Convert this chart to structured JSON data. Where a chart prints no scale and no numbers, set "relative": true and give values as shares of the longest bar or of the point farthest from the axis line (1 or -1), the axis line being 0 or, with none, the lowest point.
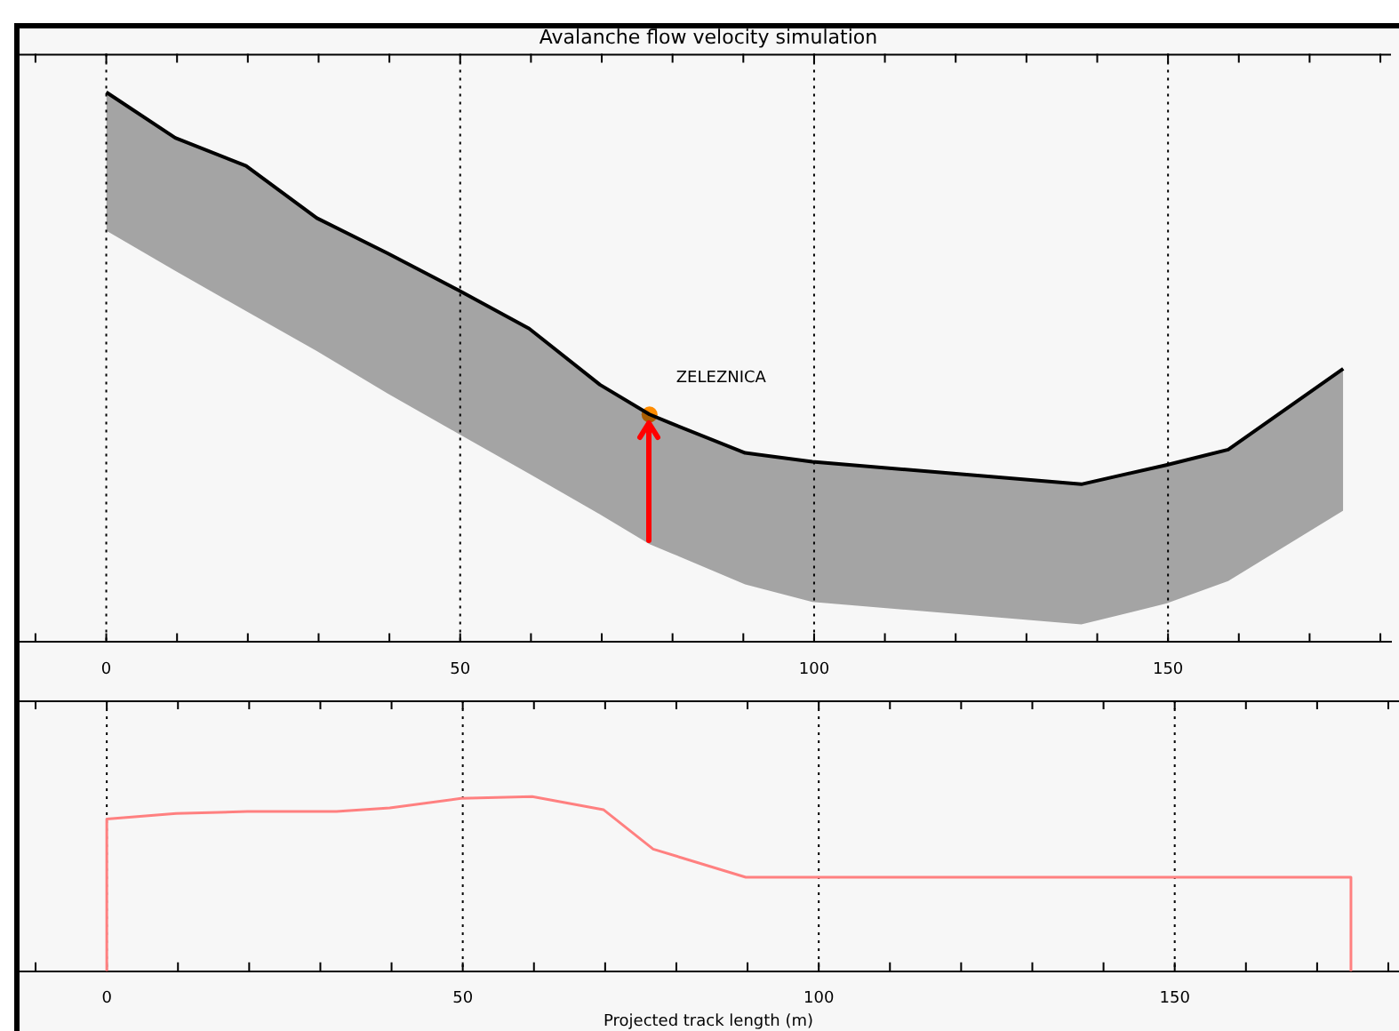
{
  "chart_data": [
    {
      "type": "line",
      "title": "Avalanche flow velocity simulation",
      "relative": true,
      "grid": "x",
      "xlim": [
        -12.5,
        181.5
      ],
      "xticks": [
        {
          "value": -10,
          "label": null
        },
        0,
        {
          "value": 10,
          "label": null
        },
        {
          "value": 20,
          "label": null
        },
        {
          "value": 30,
          "label": null
        },
        {
          "value": 40,
          "label": null
        },
        50,
        {
          "value": 60,
          "label": null
        },
        {
          "value": 70,
          "label": null
        },
        {
          "value": 80,
          "label": null
        },
        {
          "value": 90,
          "label": null
        },
        100,
        {
          "value": 110,
          "label": null
        },
        {
          "value": 120,
          "label": null
        },
        {
          "value": 130,
          "label": null
        },
        {
          "value": 140,
          "label": null
        },
        150,
        {
          "value": 160,
          "label": null
        },
        {
          "value": 170,
          "label": null
        },
        {
          "value": 180,
          "label": null
        }
      ],
      "series": [
        {
          "color": "#000000",
          "x": [
            0,
            9.75,
            19.75,
            29.75,
            39.75,
            49.75,
            59.75,
            69.75,
            76.75,
            79.75,
            90.25,
            99.75,
            137.75,
            149.75,
            158.5,
            174.75
          ],
          "values": [
            1,
            0.917,
            0.866,
            0.771,
            0.707,
            0.64,
            0.57,
            0.468,
            0.414,
            0.398,
            0.344,
            0.328,
            0.287,
            0.322,
            0.35,
            0.497
          ],
          "lower": [
            0.748,
            0.675,
            0.602,
            0.529,
            0.452,
            0.379,
            0.306,
            0.232,
            0.178,
            0.162,
            0.105,
            0.073,
            0.032,
            0.07,
            0.111,
            0.239
          ],
          "upper": [
            1,
            0.917,
            0.866,
            0.771,
            0.707,
            0.64,
            0.57,
            0.468,
            0.414,
            0.398,
            0.344,
            0.328,
            0.287,
            0.322,
            0.35,
            0.497
          ]
        },
        {
          "type": "scatter",
          "color": "#ff8c00",
          "x": [
            76.75
          ],
          "values": [
            0.414
          ]
        }
      ],
      "annotations": [
        {
          "text": "ZELEZNICA",
          "x": 76.75,
          "y": 0.414
        }
      ]
    },
    {
      "type": "line",
      "xlabel": "Projected track length (m)",
      "relative": true,
      "grid": "x",
      "xlim": [
        -12.5,
        181.5
      ],
      "xticks": [
        {
          "value": -10,
          "label": null
        },
        0,
        {
          "value": 10,
          "label": null
        },
        {
          "value": 20,
          "label": null
        },
        {
          "value": 30,
          "label": null
        },
        {
          "value": 40,
          "label": null
        },
        50,
        {
          "value": 60,
          "label": null
        },
        {
          "value": 70,
          "label": null
        },
        {
          "value": 80,
          "label": null
        },
        {
          "value": 90,
          "label": null
        },
        100,
        {
          "value": 110,
          "label": null
        },
        {
          "value": 120,
          "label": null
        },
        {
          "value": 130,
          "label": null
        },
        {
          "value": 140,
          "label": null
        },
        150,
        {
          "value": 160,
          "label": null
        },
        {
          "value": 170,
          "label": null
        },
        {
          "value": 180,
          "label": null
        }
      ],
      "series": [
        {
          "color": "#ff8080",
          "x": [
            0,
            0,
            9.75,
            19.75,
            32.25,
            39.75,
            49.75,
            59.75,
            69.75,
            76.75,
            89.75,
            174.75,
            174.75
          ],
          "values": [
            0,
            0.871,
            0.903,
            0.914,
            0.914,
            0.935,
            0.989,
            1,
            0.925,
            0.699,
            0.538,
            0.538,
            0
          ]
        }
      ]
    }
  ]
}
